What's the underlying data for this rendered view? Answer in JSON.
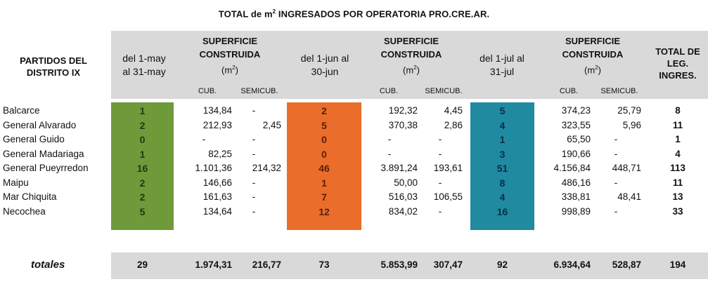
{
  "title_prefix": "TOTAL de m",
  "title_sup": "2",
  "title_suffix": " INGRESADOS POR OPERATORIA PRO.CRE.AR.",
  "header": {
    "partidos": [
      "PARTIDOS DEL",
      "DISTRITO IX"
    ],
    "periods": [
      [
        "del 1-may",
        "al 31-may"
      ],
      [
        "del 1-jun al",
        "30-jun"
      ],
      [
        "del 1-jul al",
        "31-jul"
      ]
    ],
    "superficie": [
      "SUPERFICIE",
      "CONSTRUIDA"
    ],
    "unit_prefix": "(m",
    "unit_sup": "2",
    "unit_suffix": ")",
    "cub": "CUB.",
    "semicub": "SEMICUB.",
    "total": [
      "TOTAL DE",
      "LEG.",
      "INGRES."
    ]
  },
  "rows": [
    {
      "partido": "Balcarce",
      "may_n": "1",
      "may_cub": "134,84",
      "may_semi": "-",
      "jun_n": "2",
      "jun_cub": "192,32",
      "jun_semi": "4,45",
      "jul_n": "5",
      "jul_cub": "374,23",
      "jul_semi": "25,79",
      "total": "8"
    },
    {
      "partido": "General Alvarado",
      "may_n": "2",
      "may_cub": "212,93",
      "may_semi": "2,45",
      "jun_n": "5",
      "jun_cub": "370,38",
      "jun_semi": "2,86",
      "jul_n": "4",
      "jul_cub": "323,55",
      "jul_semi": "5,96",
      "total": "11"
    },
    {
      "partido": "General Guido",
      "may_n": "0",
      "may_cub": "-",
      "may_semi": "-",
      "jun_n": "0",
      "jun_cub": "-",
      "jun_semi": "-",
      "jul_n": "1",
      "jul_cub": "65,50",
      "jul_semi": "-",
      "total": "1"
    },
    {
      "partido": "General Madariaga",
      "may_n": "1",
      "may_cub": "82,25",
      "may_semi": "-",
      "jun_n": "0",
      "jun_cub": "-",
      "jun_semi": "-",
      "jul_n": "3",
      "jul_cub": "190,66",
      "jul_semi": "-",
      "total": "4"
    },
    {
      "partido": "General Pueyrredon",
      "may_n": "16",
      "may_cub": "1.101,36",
      "may_semi": "214,32",
      "jun_n": "46",
      "jun_cub": "3.891,24",
      "jun_semi": "193,61",
      "jul_n": "51",
      "jul_cub": "4.156,84",
      "jul_semi": "448,71",
      "total": "113"
    },
    {
      "partido": "Maipu",
      "may_n": "2",
      "may_cub": "146,66",
      "may_semi": "-",
      "jun_n": "1",
      "jun_cub": "50,00",
      "jun_semi": "-",
      "jul_n": "8",
      "jul_cub": "486,16",
      "jul_semi": "-",
      "total": "11"
    },
    {
      "partido": "Mar Chiquita",
      "may_n": "2",
      "may_cub": "161,63",
      "may_semi": "-",
      "jun_n": "7",
      "jun_cub": "516,03",
      "jun_semi": "106,55",
      "jul_n": "4",
      "jul_cub": "338,81",
      "jul_semi": "48,41",
      "total": "13"
    },
    {
      "partido": "Necochea",
      "may_n": "5",
      "may_cub": "134,64",
      "may_semi": "-",
      "jun_n": "12",
      "jun_cub": "834,02",
      "jun_semi": "-",
      "jul_n": "16",
      "jul_cub": "998,89",
      "jul_semi": "-",
      "total": "33"
    }
  ],
  "totals": {
    "label": "totales",
    "may_n": "29",
    "may_cub": "1.974,31",
    "may_semi": "216,77",
    "jun_n": "73",
    "jun_cub": "5.853,99",
    "jun_semi": "307,47",
    "jul_n": "92",
    "jul_cub": "6.934,64",
    "jul_semi": "528,87",
    "total": "194"
  },
  "colors": {
    "may": "#6e9a3a",
    "jun": "#ea6d2b",
    "jul": "#1f8aa0",
    "band": "#d9d9d9"
  }
}
